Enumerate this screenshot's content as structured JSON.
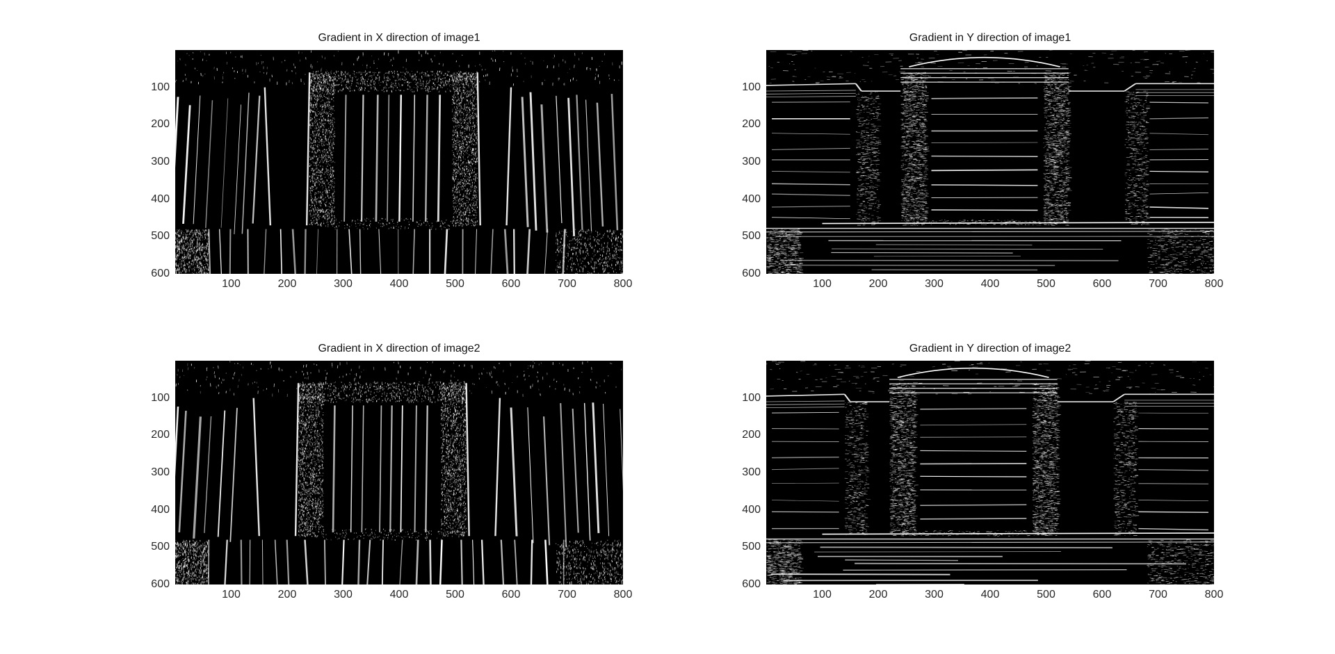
{
  "figure": {
    "panels": [
      {
        "title": "Gradient in X direction of image1",
        "direction": "x",
        "y_ticks": [
          "100",
          "200",
          "300",
          "400",
          "500",
          "600"
        ],
        "x_ticks": [
          "100",
          "200",
          "300",
          "400",
          "500",
          "600",
          "700",
          "800"
        ]
      },
      {
        "title": "Gradient in Y direction of image1",
        "direction": "y",
        "y_ticks": [
          "100",
          "200",
          "300",
          "400",
          "500",
          "600"
        ],
        "x_ticks": [
          "100",
          "200",
          "300",
          "400",
          "500",
          "600",
          "700",
          "800"
        ]
      },
      {
        "title": "Gradient in X direction of image2",
        "direction": "x",
        "y_ticks": [
          "100",
          "200",
          "300",
          "400",
          "500",
          "600"
        ],
        "x_ticks": [
          "100",
          "200",
          "300",
          "400",
          "500",
          "600",
          "700",
          "800"
        ]
      },
      {
        "title": "Gradient in Y direction of image2",
        "direction": "y",
        "y_ticks": [
          "100",
          "200",
          "300",
          "400",
          "500",
          "600"
        ],
        "x_ticks": [
          "100",
          "200",
          "300",
          "400",
          "500",
          "600",
          "700",
          "800"
        ]
      }
    ],
    "colors": {
      "image_background": "#000000",
      "edge": "#ffffff",
      "page_background": "#ffffff"
    }
  }
}
